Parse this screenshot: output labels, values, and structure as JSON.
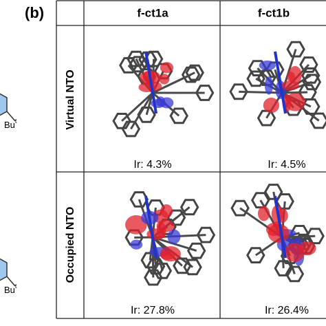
{
  "panel_label": "(b)",
  "table": {
    "columns": [
      "f-ct1a",
      "f-ct1b"
    ],
    "rows": [
      {
        "label": "Virtual NTO",
        "cells": [
          "Ir: 4.3%",
          "Ir: 4.5%"
        ]
      },
      {
        "label": "Occupied NTO",
        "cells": [
          "Ir: 27.8%",
          "Ir: 26.4%"
        ]
      }
    ]
  },
  "side_structures": [
    {
      "base": "Bu",
      "sup": "t"
    },
    {
      "base": "Bu",
      "sup": "t"
    }
  ]
}
